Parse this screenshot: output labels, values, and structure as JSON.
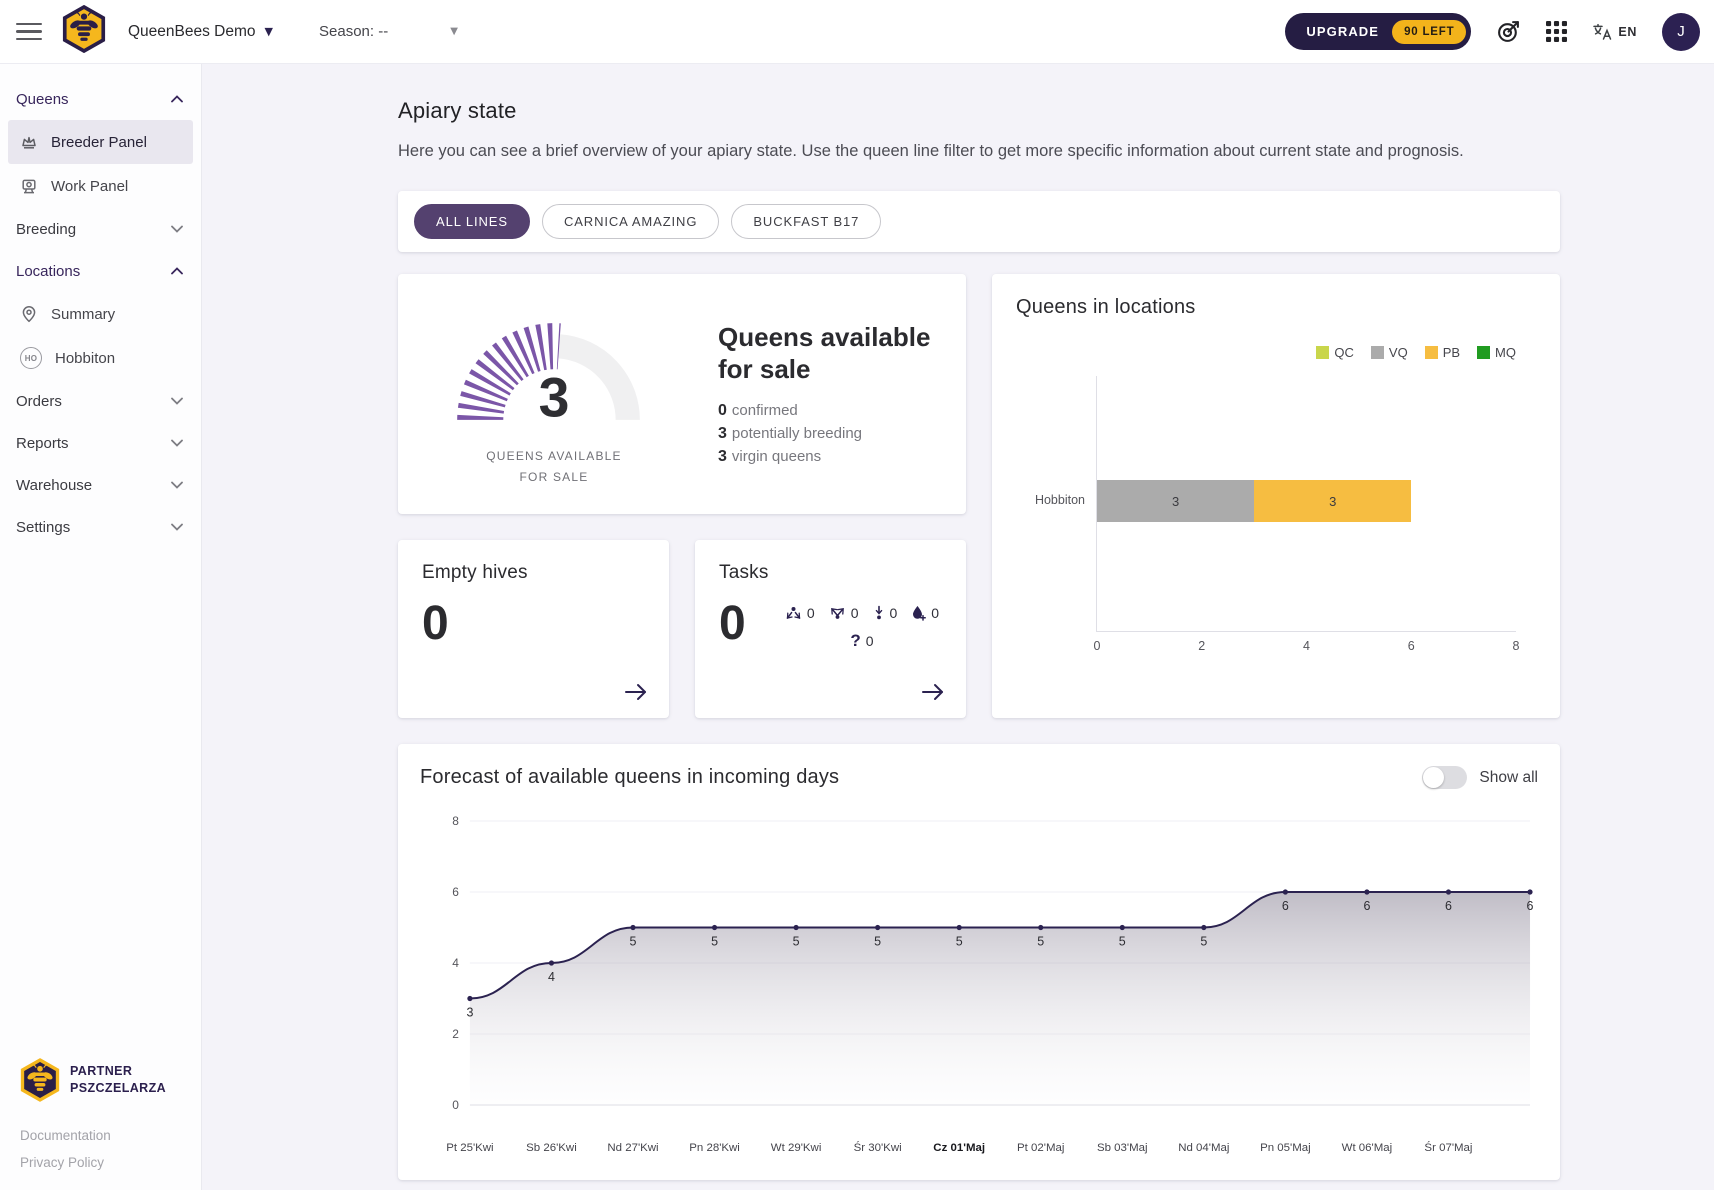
{
  "topbar": {
    "app_title": "QueenBees Demo",
    "season_label": "Season: --",
    "upgrade_label": "UPGRADE",
    "upgrade_badge": "90 LEFT",
    "language": "EN",
    "avatar_initial": "J"
  },
  "sidebar": {
    "sections": {
      "queens": "Queens",
      "breeding": "Breeding",
      "locations": "Locations",
      "orders": "Orders",
      "reports": "Reports",
      "warehouse": "Warehouse",
      "settings": "Settings"
    },
    "items": {
      "breeder_panel": "Breeder Panel",
      "work_panel": "Work Panel",
      "summary": "Summary",
      "hobbiton": "Hobbiton",
      "hobbiton_badge": "HO"
    },
    "footer": {
      "partner_line1": "PARTNER",
      "partner_line2": "PSZCZELARZA",
      "documentation": "Documentation",
      "privacy": "Privacy Policy"
    }
  },
  "page": {
    "title": "Apiary state",
    "description": "Here you can see a brief overview of your apiary state. Use the queen line filter to get more specific information about current state and prognosis."
  },
  "filters": {
    "chips": [
      {
        "label": "ALL LINES",
        "active": true
      },
      {
        "label": "CARNICA AMAZING",
        "active": false
      },
      {
        "label": "BUCKFAST B17",
        "active": false
      }
    ]
  },
  "sale_card": {
    "gauge_value": "3",
    "gauge_caption_line1": "QUEENS AVAILABLE",
    "gauge_caption_line2": "FOR SALE",
    "title": "Queens available for sale",
    "stats": [
      {
        "value": "0",
        "label": "confirmed"
      },
      {
        "value": "3",
        "label": "potentially breeding"
      },
      {
        "value": "3",
        "label": "virgin queens"
      }
    ]
  },
  "empty_hives_card": {
    "title": "Empty hives",
    "value": "0"
  },
  "tasks_card": {
    "title": "Tasks",
    "value": "0",
    "items": [
      {
        "icon": "graft-arrows-icon",
        "count": "0"
      },
      {
        "icon": "split-arrows-icon",
        "count": "0"
      },
      {
        "icon": "insert-down-icon",
        "count": "0"
      },
      {
        "icon": "feed-drop-icon",
        "count": "0"
      },
      {
        "icon": "question-icon",
        "count": "0"
      }
    ]
  },
  "locations_chart_card": {
    "title": "Queens in locations"
  },
  "forecast_card": {
    "title": "Forecast of available queens in incoming days",
    "toggle_label": "Show all",
    "toggle_on": false
  },
  "chart_data": [
    {
      "name": "queens_in_locations",
      "type": "bar",
      "orientation": "horizontal",
      "stacked": true,
      "categories": [
        "Hobbiton"
      ],
      "series": [
        {
          "name": "QC",
          "color": "#c9d64b",
          "values": [
            0
          ]
        },
        {
          "name": "VQ",
          "color": "#ababab",
          "values": [
            3
          ]
        },
        {
          "name": "PB",
          "color": "#f6bd41",
          "values": [
            3
          ]
        },
        {
          "name": "MQ",
          "color": "#219c21",
          "values": [
            0
          ]
        }
      ],
      "xlim": [
        0,
        8
      ],
      "x_ticks": [
        0,
        2,
        4,
        6,
        8
      ],
      "legend_position": "top-right",
      "show_values": true,
      "grid": false
    },
    {
      "name": "forecast_available_queens",
      "type": "area",
      "x_labels": [
        "Pt 25'Kwi",
        "Sb 26'Kwi",
        "Nd 27'Kwi",
        "Pn 28'Kwi",
        "Wt 29'Kwi",
        "Śr 30'Kwi",
        "Cz 01'Maj",
        "Pt 02'Maj",
        "Sb 03'Maj",
        "Nd 04'Maj",
        "Pn 05'Maj",
        "Wt 06'Maj",
        "Śr 07'Maj",
        ""
      ],
      "values": [
        3,
        4,
        5,
        5,
        5,
        5,
        5,
        5,
        5,
        5,
        6,
        6,
        6,
        6
      ],
      "today_index": 6,
      "ylim": [
        0,
        8
      ],
      "y_ticks": [
        0,
        2,
        4,
        6,
        8
      ],
      "line_color": "#2b2250",
      "point_labels_visible": true,
      "legend": "none"
    }
  ],
  "colors": {
    "brand_dark": "#251d43",
    "brand_yellow": "#f3b31b",
    "accent_purple": "#54416f",
    "gauge_purple": "#7b56a8"
  }
}
